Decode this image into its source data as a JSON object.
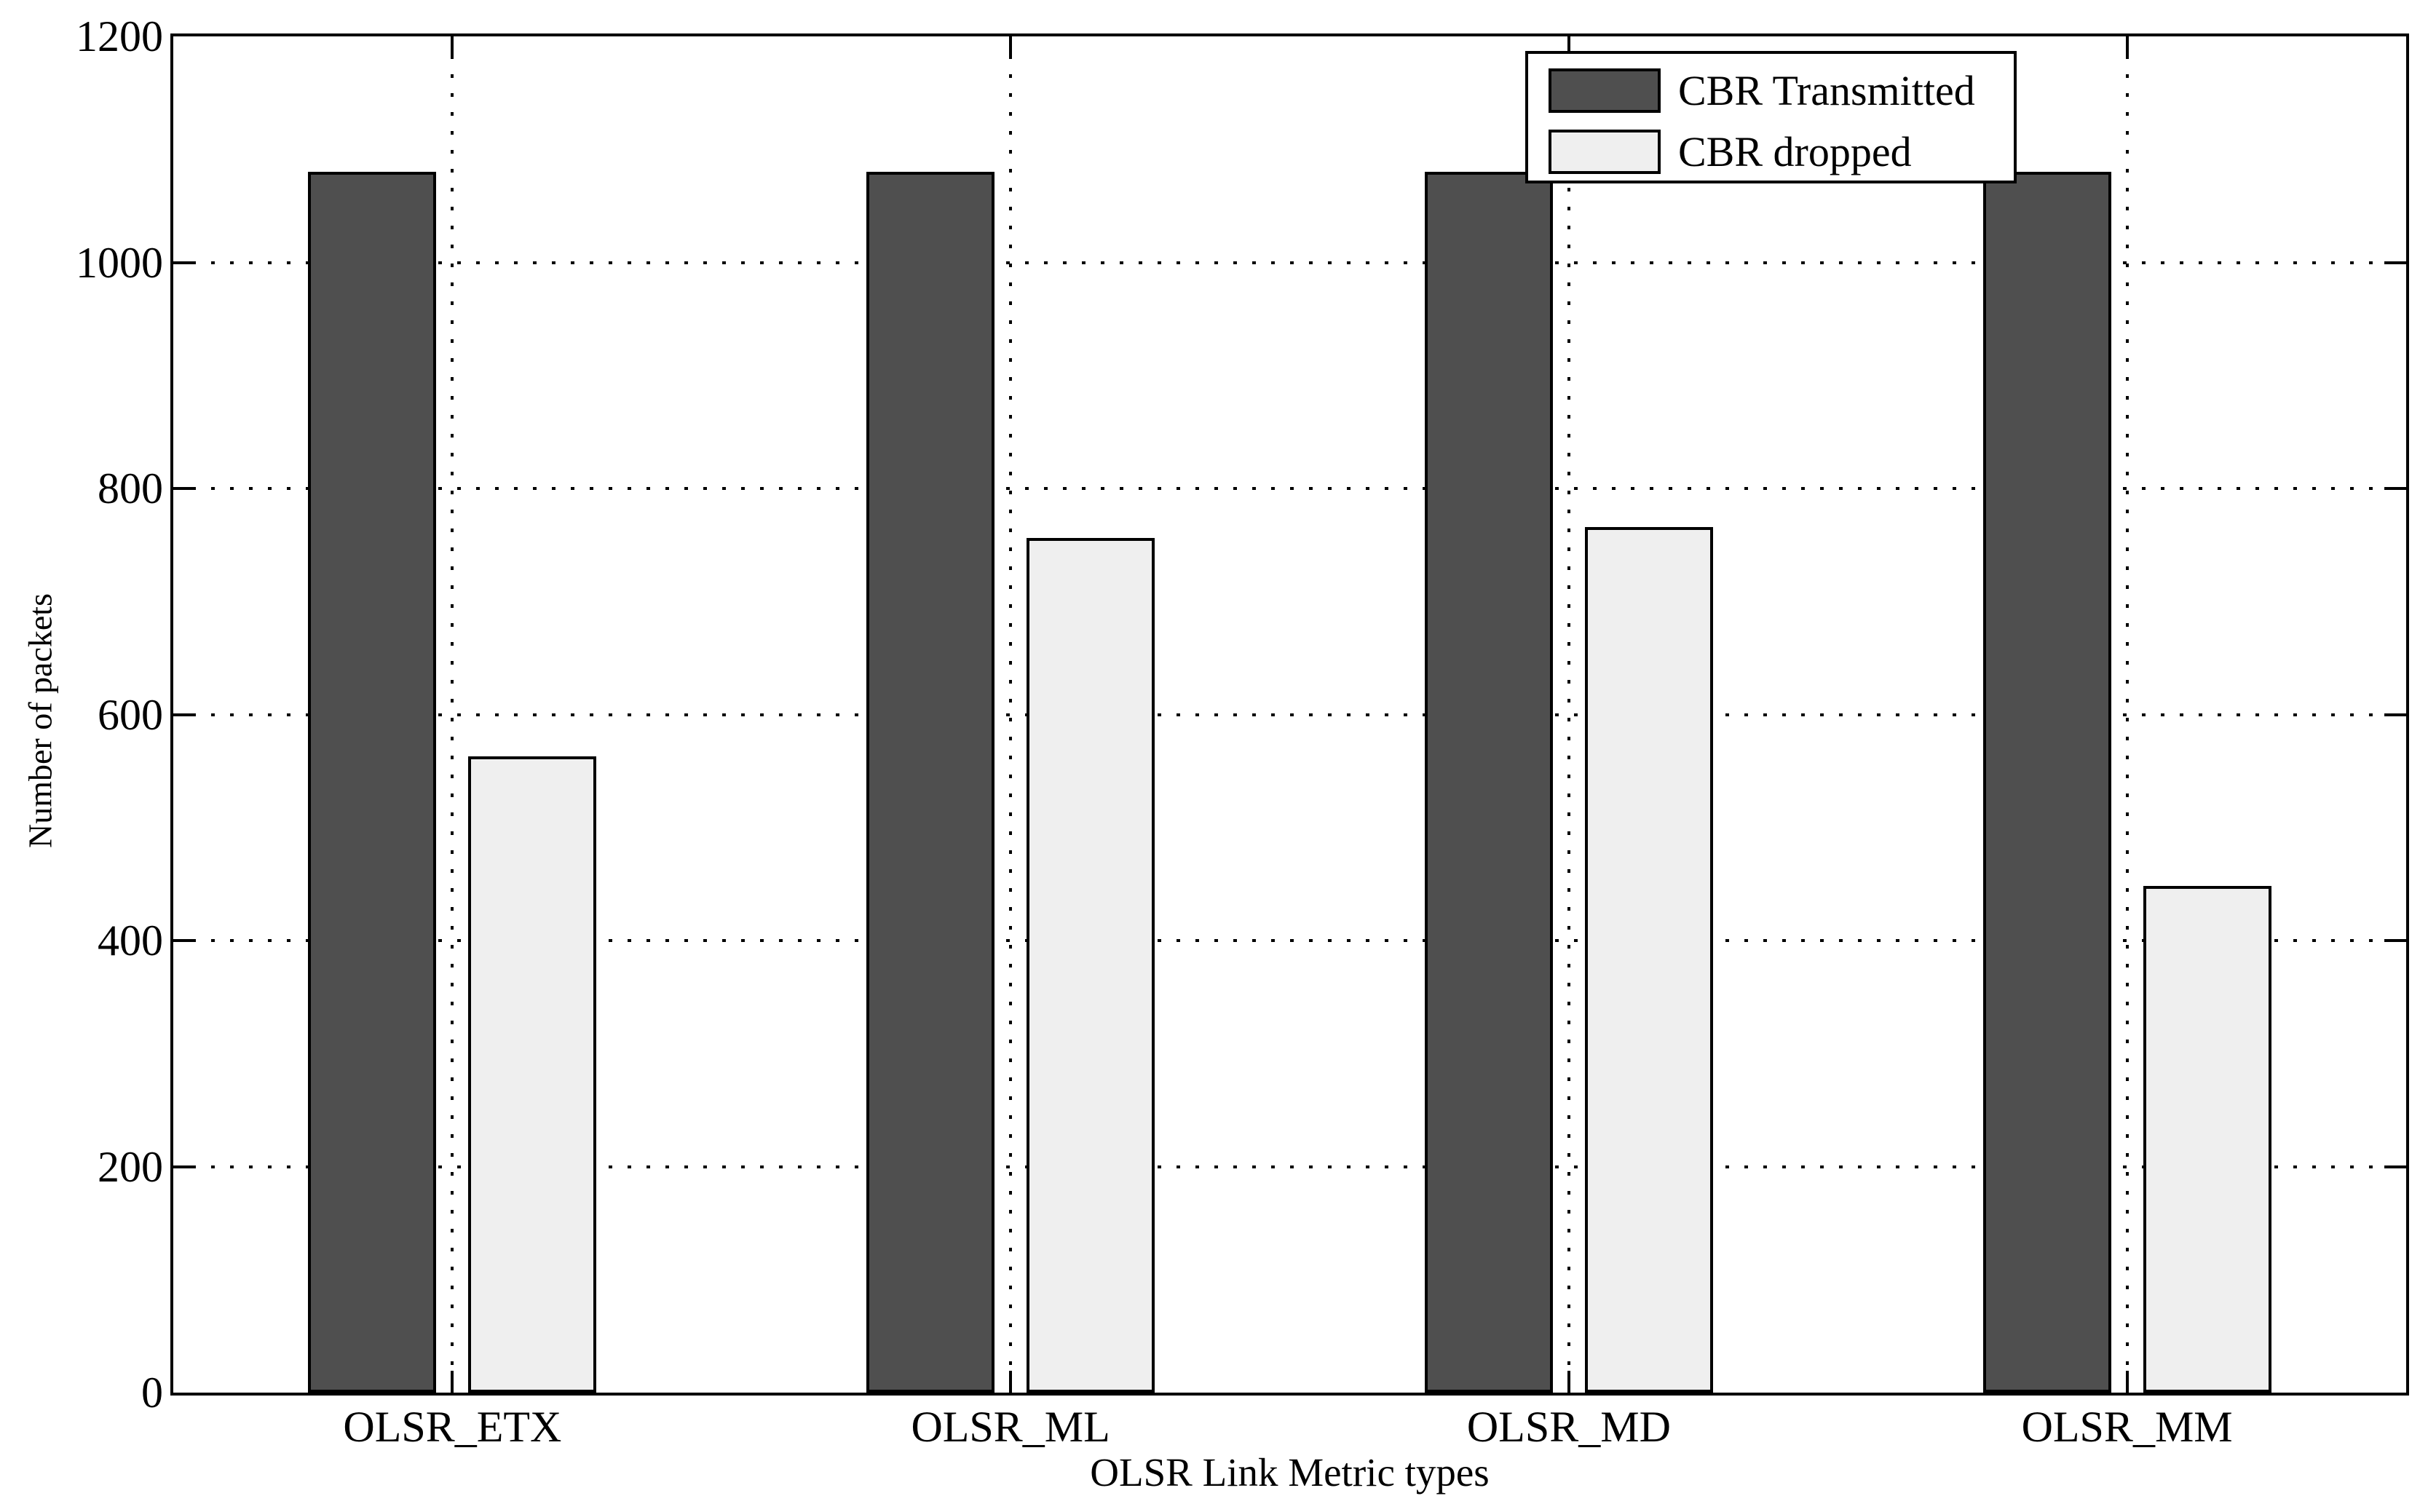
{
  "figure": {
    "background_color": "#ffffff",
    "axis_line_color": "#000000",
    "grid_style": "dotted"
  },
  "chart_data": {
    "type": "bar",
    "title": "",
    "xlabel": "OLSR Link Metric types",
    "ylabel": "Number of packets",
    "categories": [
      "OLSR_ETX",
      "OLSR_ML",
      "OLSR_MD",
      "OLSR_MM"
    ],
    "series": [
      {
        "name": "CBR Transmitted",
        "color": "#4f4f4f",
        "values": [
          1080,
          1080,
          1080,
          1080
        ]
      },
      {
        "name": "CBR dropped",
        "color": "#efefef",
        "values": [
          563,
          756,
          766,
          448
        ]
      }
    ],
    "ylim": [
      0,
      1200
    ],
    "yticks": [
      0,
      200,
      400,
      600,
      800,
      1000,
      1200
    ],
    "grid": true,
    "legend_position": "top-right"
  }
}
